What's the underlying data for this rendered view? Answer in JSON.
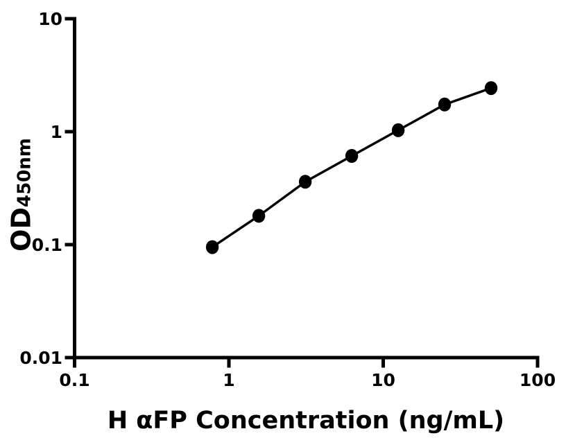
{
  "chart_data": {
    "type": "scatter",
    "title": "",
    "xlabel": "H αFP Concentration (ng/mL)",
    "ylabel_main": "OD",
    "ylabel_sub": "450nm",
    "ylabel_combined": "OD450nm",
    "xscale": "log",
    "yscale": "log",
    "xlim": [
      0.1,
      100
    ],
    "ylim": [
      0.01,
      10
    ],
    "grid": false,
    "legend": "none",
    "ink_color": "#000000",
    "background_color": "#ffffff",
    "x_ticks": [
      {
        "value": 0.1,
        "label": "0.1"
      },
      {
        "value": 1,
        "label": "1"
      },
      {
        "value": 10,
        "label": "10"
      },
      {
        "value": 100,
        "label": "100"
      }
    ],
    "y_ticks": [
      {
        "value": 0.01,
        "label": "0.01"
      },
      {
        "value": 0.1,
        "label": "0.1"
      },
      {
        "value": 1,
        "label": "1"
      },
      {
        "value": 10,
        "label": "10"
      }
    ],
    "series": [
      {
        "marker": "filled-circle",
        "color": "#000000",
        "x": [
          0.78125,
          1.5625,
          3.125,
          6.25,
          12.5,
          25,
          50
        ],
        "y": [
          0.095,
          0.18,
          0.36,
          0.61,
          1.03,
          1.74,
          2.43
        ]
      }
    ]
  }
}
